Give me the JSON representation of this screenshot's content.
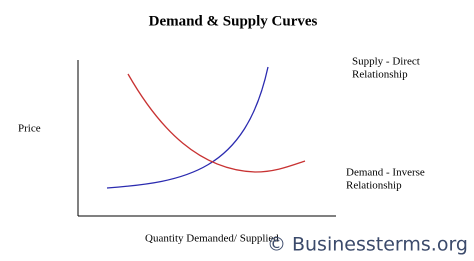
{
  "title": "Demand & Supply Curves",
  "y_axis_label": "Price",
  "x_axis_label": "Quantity Demanded/ Supplied",
  "curves": [
    {
      "lines": [
        "Supply - Direct",
        "Relationship"
      ]
    },
    {
      "lines": [
        "Demand - Inverse",
        "Relationship"
      ]
    }
  ],
  "footer": "© Businessterms.org"
}
